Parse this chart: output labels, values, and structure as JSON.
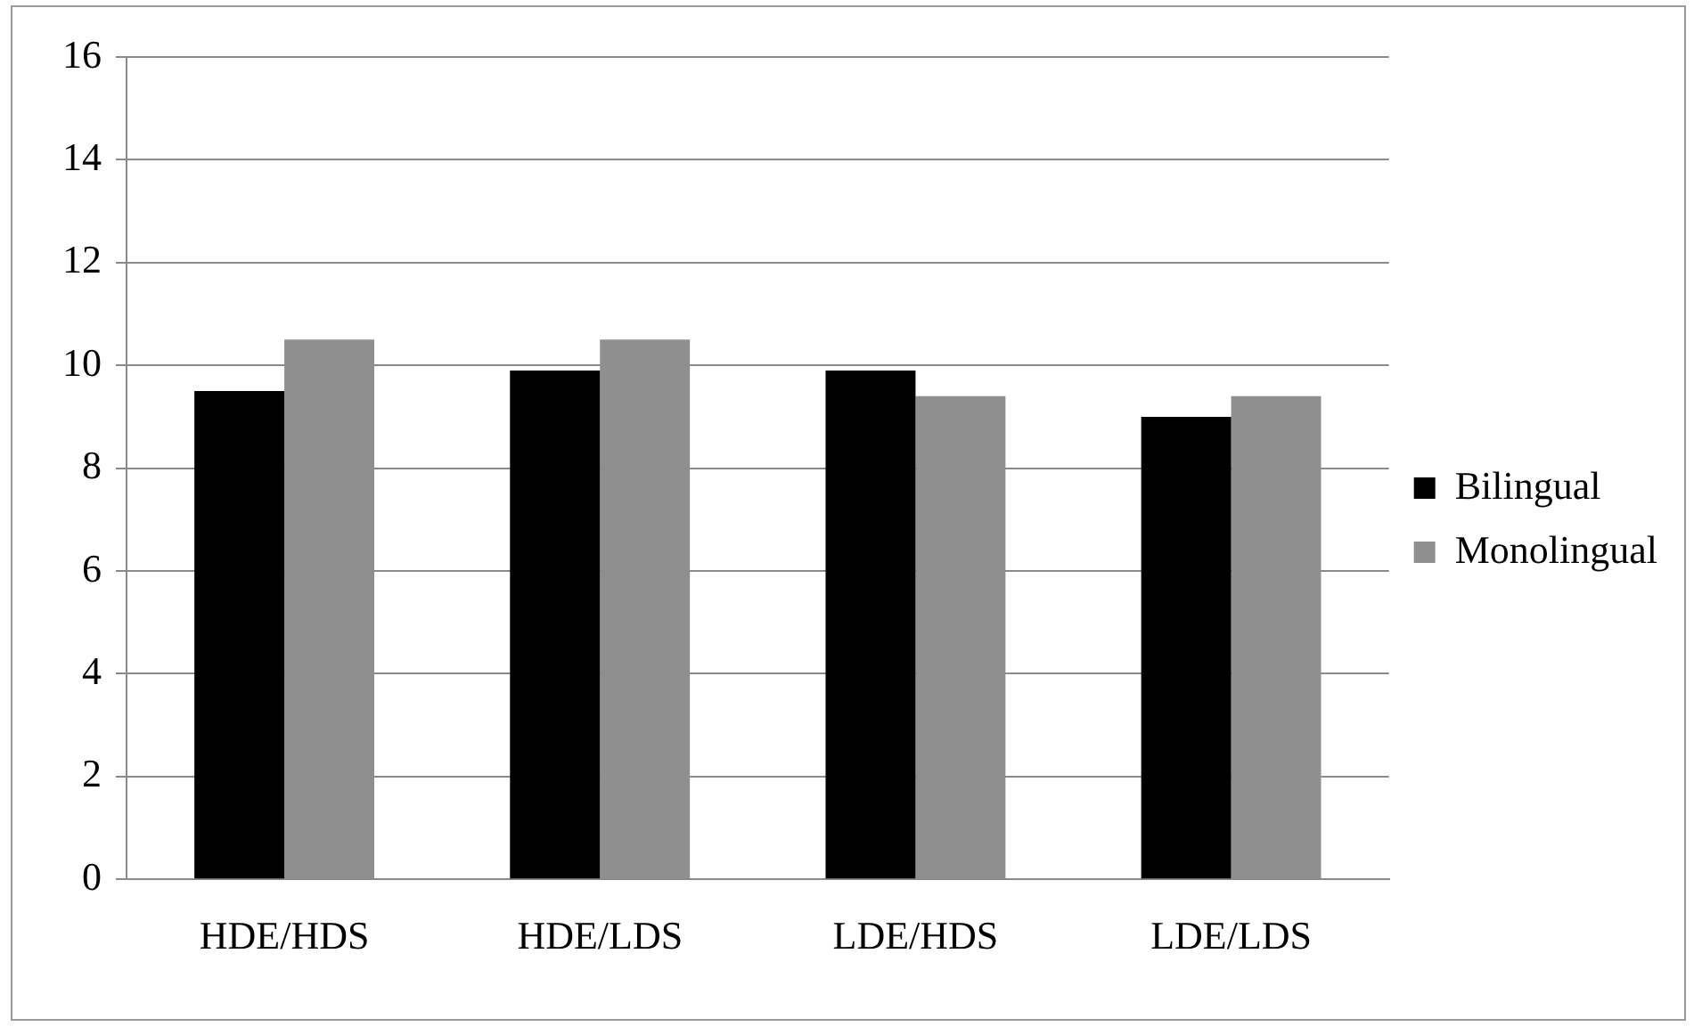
{
  "chart_data": {
    "type": "bar",
    "categories": [
      "HDE/HDS",
      "HDE/LDS",
      "LDE/HDS",
      "LDE/LDS"
    ],
    "series": [
      {
        "name": "Bilingual",
        "color": "#000000",
        "values": [
          9.5,
          9.9,
          9.9,
          9.0
        ]
      },
      {
        "name": "Monolingual",
        "color": "#8f8f8f",
        "values": [
          10.5,
          10.5,
          9.4,
          9.4
        ]
      }
    ],
    "ylim": [
      0,
      16
    ],
    "yticks": [
      0,
      2,
      4,
      6,
      8,
      10,
      12,
      14,
      16
    ],
    "grid": "y",
    "legend": "right"
  }
}
